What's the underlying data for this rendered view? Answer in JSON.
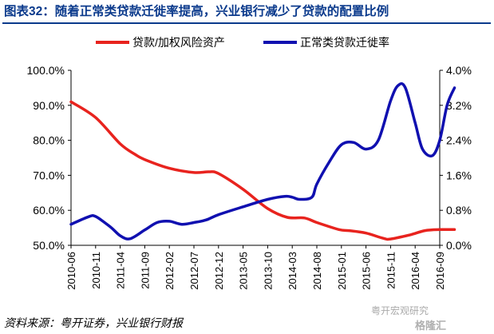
{
  "header": {
    "title": "图表32：随着正常类贷款迁徙率提高，兴业银行减少了贷款的配置比例"
  },
  "footer": {
    "source": "资料来源：粤开证券，兴业银行财报"
  },
  "watermark": {
    "text": "粤开宏观研究",
    "brand": "格隆汇"
  },
  "colors": {
    "title": "#0b3a8c",
    "series_red": "#e8231e",
    "series_blue": "#1010b0"
  },
  "chart_data": {
    "type": "line",
    "title": "",
    "categories": [
      "2010-06",
      "2010-11",
      "2011-04",
      "2011-09",
      "2012-02",
      "2012-07",
      "2012-12",
      "2013-05",
      "2013-10",
      "2014-03",
      "2014-08",
      "2015-01",
      "2015-06",
      "2015-11",
      "2016-04",
      "2016-09"
    ],
    "y_left": {
      "ylim": [
        50,
        100
      ],
      "ticks": [
        "50.0%",
        "60.0%",
        "70.0%",
        "80.0%",
        "90.0%",
        "100.0%"
      ]
    },
    "y_right": {
      "ylim": [
        0,
        4
      ],
      "ticks": [
        "0.0%",
        "0.8%",
        "1.6%",
        "2.4%",
        "3.2%",
        "4.0%"
      ]
    },
    "legend_position": "top",
    "grid": false,
    "series": [
      {
        "name": "贷款/加权风险资产",
        "axis": "left",
        "color": "#e8231e",
        "x": [
          0,
          1,
          2,
          2.6,
          3,
          4,
          5,
          5.6,
          6,
          7,
          8,
          8.8,
          9.5,
          10,
          10.9,
          11.3,
          12,
          12.7,
          13,
          13.8,
          14.4,
          15,
          15.6
        ],
        "values": [
          91.0,
          86.5,
          79.0,
          76.0,
          74.5,
          72.0,
          70.8,
          71.0,
          70.5,
          66.0,
          60.5,
          58.0,
          57.8,
          56.5,
          54.5,
          54.2,
          53.5,
          52.0,
          51.8,
          53.0,
          54.2,
          54.5,
          54.5
        ]
      },
      {
        "name": "正常类贷款迁徙率",
        "axis": "right",
        "color": "#1010b0",
        "x": [
          0,
          0.7,
          1,
          1.6,
          2,
          2.4,
          3,
          3.5,
          4,
          4.5,
          5,
          5.5,
          6,
          7,
          8,
          8.7,
          9,
          9.3,
          9.8,
          10,
          10.5,
          11,
          11.5,
          12,
          12.5,
          13,
          13.3,
          13.6,
          14,
          14.3,
          14.7,
          15,
          15.3,
          15.6
        ],
        "values": [
          0.48,
          0.65,
          0.66,
          0.42,
          0.22,
          0.15,
          0.35,
          0.52,
          0.55,
          0.48,
          0.52,
          0.58,
          0.7,
          0.88,
          1.05,
          1.12,
          1.1,
          1.05,
          1.1,
          1.4,
          1.9,
          2.3,
          2.35,
          2.2,
          2.4,
          3.3,
          3.65,
          3.6,
          2.8,
          2.2,
          2.05,
          2.4,
          3.2,
          3.6
        ]
      }
    ]
  }
}
